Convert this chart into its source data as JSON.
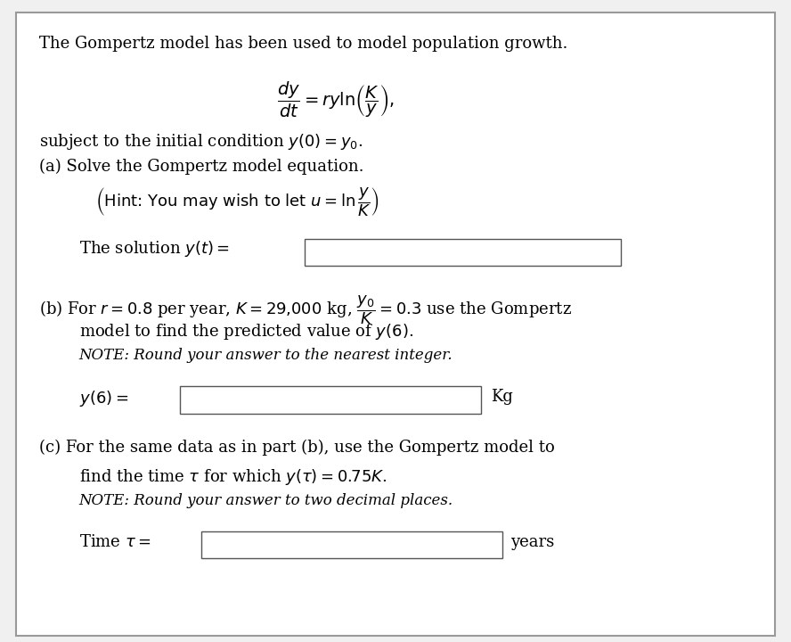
{
  "bg_color": "#f0f0f0",
  "box_bg": "#ffffff",
  "box_border": "#cccccc",
  "text_color": "#000000",
  "font_family": "serif",
  "title_text": "The Gompertz model has been used to model population growth.",
  "ode_line1": "$\\dfrac{dy}{dt} = ry\\ln\\!\\left(\\dfrac{K}{y}\\right),$",
  "subject_text": "subject to the initial condition $y(0) = y_0$.",
  "part_a_text": "(a) Solve the Gompertz model equation.",
  "hint_text": "$\\left(\\text{Hint: You may wish to let } u = \\ln\\dfrac{y}{K}\\right)$",
  "solution_label": "The solution $y(t) =$",
  "part_b_line1": "(b) For $r = 0.8$ per year, $K = 29{,}000$ kg, $\\dfrac{y_0}{K} = 0.3$ use the Gompertz",
  "part_b_line2": "model to find the predicted value of $y(6)$.",
  "part_b_note": "NOTE: Round your answer to the nearest integer.",
  "y6_label": "$y(6) =$",
  "y6_unit": "Kg",
  "part_c_line1": "(c) For the same data as in part (b), use the Gompertz model to",
  "part_c_line2": "find the time $\\tau$ for which $y(\\tau) = 0.75K$.",
  "part_c_note": "NOTE: Round your answer to two decimal places.",
  "time_label": "Time $\\tau=$",
  "time_unit": "years"
}
